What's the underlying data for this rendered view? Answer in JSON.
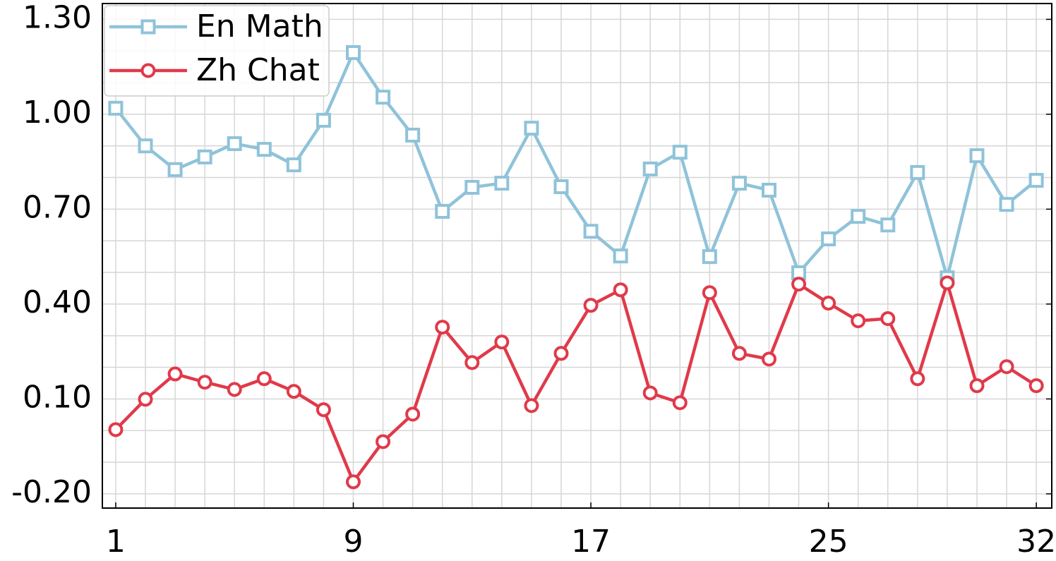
{
  "chart_data": {
    "type": "line",
    "x": [
      1,
      2,
      3,
      4,
      5,
      6,
      7,
      8,
      9,
      10,
      11,
      12,
      13,
      14,
      15,
      16,
      17,
      18,
      19,
      20,
      21,
      22,
      23,
      24,
      25,
      26,
      27,
      28,
      29,
      30,
      31,
      32
    ],
    "series": [
      {
        "name": "En Math",
        "color": "#8fc3d9",
        "marker": "square",
        "values": [
          1.019,
          0.9,
          0.825,
          0.865,
          0.907,
          0.889,
          0.84,
          0.981,
          1.195,
          1.054,
          0.934,
          0.693,
          0.769,
          0.782,
          0.956,
          0.771,
          0.63,
          0.552,
          0.827,
          0.88,
          0.55,
          0.782,
          0.76,
          0.499,
          0.606,
          0.677,
          0.65,
          0.816,
          0.483,
          0.869,
          0.715,
          0.791
        ]
      },
      {
        "name": "Zh Chat",
        "color": "#e03a4a",
        "marker": "circle",
        "values": [
          0.003,
          0.099,
          0.179,
          0.153,
          0.13,
          0.164,
          0.124,
          0.066,
          -0.162,
          -0.035,
          0.052,
          0.327,
          0.215,
          0.28,
          0.079,
          0.244,
          0.396,
          0.445,
          0.119,
          0.088,
          0.436,
          0.244,
          0.226,
          0.463,
          0.403,
          0.347,
          0.354,
          0.164,
          0.467,
          0.142,
          0.202,
          0.142
        ]
      }
    ],
    "xlim": [
      0.55,
      32.52
    ],
    "xticks": [
      1,
      9,
      17,
      25,
      32
    ],
    "ylim": [
      -0.245,
      1.35
    ],
    "yticks": [
      {
        "value": -0.2,
        "label": "-0.20"
      },
      {
        "value": 0.1,
        "label": "0.10"
      },
      {
        "value": 0.4,
        "label": "0.40"
      },
      {
        "value": 0.7,
        "label": "0.70"
      },
      {
        "value": 1.0,
        "label": "1.00"
      },
      {
        "value": 1.3,
        "label": "1.30"
      }
    ],
    "grid": true,
    "legend": "upper left"
  }
}
